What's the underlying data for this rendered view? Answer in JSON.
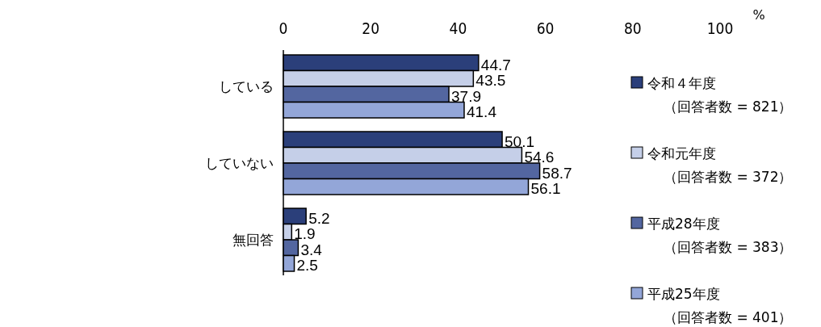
{
  "chart_data": {
    "type": "bar",
    "orientation": "horizontal",
    "xlabel": "%",
    "categories": [
      "している",
      "していない",
      "無回答"
    ],
    "series": [
      {
        "name": "令和４年度（回答者数 = 821）",
        "color": "#2b3f7a",
        "values": [
          44.7,
          50.1,
          5.2
        ]
      },
      {
        "name": "令和元年度（回答者数 = 372）",
        "color": "#c5cfe8",
        "values": [
          43.5,
          54.6,
          1.9
        ]
      },
      {
        "name": "平成28年度（回答者数 = 383）",
        "color": "#5366a0",
        "values": [
          37.9,
          58.7,
          3.4
        ]
      },
      {
        "name": "平成25年度（回答者数 = 401）",
        "color": "#93a6d8",
        "values": [
          41.4,
          56.1,
          2.5
        ]
      }
    ],
    "xlim": [
      0,
      100
    ],
    "xticks": [
      0,
      20,
      40,
      60,
      80,
      100
    ],
    "data_labels": true,
    "legend": "right"
  }
}
